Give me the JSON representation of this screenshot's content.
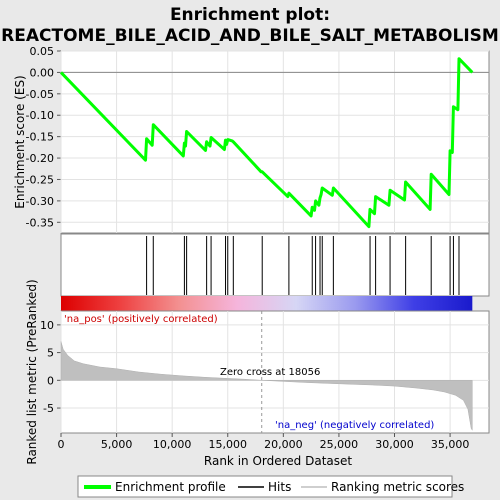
{
  "chart_data": {
    "type": "line",
    "title_line1": "Enrichment plot:",
    "title_line2": "REACTOME_BILE_ACID_AND_BILE_SALT_METABOLISM",
    "xlabel": "Rank in Ordered Dataset",
    "ylabel_top": "Enrichment score (ES)",
    "ylabel_bottom": "Ranked list metric (PreRanked)",
    "xlim": [
      0,
      38500
    ],
    "x_ticks": [
      0,
      5000,
      10000,
      15000,
      20000,
      25000,
      30000,
      35000
    ],
    "x_tick_labels": [
      "0",
      "5,000",
      "10,000",
      "15,000",
      "20,000",
      "25,000",
      "30,000",
      "35,000"
    ],
    "es_ylim": [
      -0.375,
      0.05
    ],
    "es_ticks": [
      0.05,
      0.0,
      -0.05,
      -0.1,
      -0.15,
      -0.2,
      -0.25,
      -0.3,
      -0.35
    ],
    "es_tick_labels": [
      "0.05",
      "0.00",
      "-0.05",
      "-0.10",
      "-0.15",
      "-0.20",
      "-0.25",
      "-0.30",
      "-0.35"
    ],
    "metric_ylim": [
      -9.5,
      12.5
    ],
    "metric_ticks": [
      10,
      5,
      0,
      -5
    ],
    "metric_tick_labels": [
      "10",
      "5",
      "0",
      "-5"
    ],
    "hits": [
      7700,
      8300,
      11100,
      11300,
      13100,
      13500,
      14800,
      15000,
      15500,
      18100,
      20500,
      22600,
      22900,
      23300,
      23500,
      24500,
      27800,
      28300,
      29600,
      31000,
      33300,
      35000,
      35300,
      35800
    ],
    "enrichment_profile": [
      [
        0,
        0.0
      ],
      [
        7600,
        -0.205
      ],
      [
        7700,
        -0.155
      ],
      [
        8200,
        -0.17
      ],
      [
        8300,
        -0.122
      ],
      [
        11000,
        -0.195
      ],
      [
        11100,
        -0.165
      ],
      [
        11200,
        -0.172
      ],
      [
        11300,
        -0.138
      ],
      [
        13000,
        -0.182
      ],
      [
        13100,
        -0.162
      ],
      [
        13400,
        -0.172
      ],
      [
        13500,
        -0.152
      ],
      [
        14700,
        -0.18
      ],
      [
        14800,
        -0.158
      ],
      [
        14900,
        -0.168
      ],
      [
        15000,
        -0.157
      ],
      [
        15400,
        -0.16
      ],
      [
        15500,
        -0.162
      ],
      [
        18000,
        -0.232
      ],
      [
        18100,
        -0.232
      ],
      [
        20400,
        -0.29
      ],
      [
        20500,
        -0.282
      ],
      [
        22500,
        -0.335
      ],
      [
        22600,
        -0.315
      ],
      [
        22800,
        -0.322
      ],
      [
        22900,
        -0.3
      ],
      [
        23200,
        -0.31
      ],
      [
        23300,
        -0.293
      ],
      [
        23400,
        -0.285
      ],
      [
        23500,
        -0.27
      ],
      [
        24400,
        -0.287
      ],
      [
        24500,
        -0.27
      ],
      [
        27700,
        -0.36
      ],
      [
        27800,
        -0.32
      ],
      [
        28200,
        -0.33
      ],
      [
        28300,
        -0.29
      ],
      [
        29500,
        -0.31
      ],
      [
        29600,
        -0.275
      ],
      [
        30900,
        -0.298
      ],
      [
        31000,
        -0.256
      ],
      [
        33200,
        -0.32
      ],
      [
        33300,
        -0.238
      ],
      [
        34900,
        -0.285
      ],
      [
        35000,
        -0.183
      ],
      [
        35200,
        -0.187
      ],
      [
        35300,
        -0.08
      ],
      [
        35700,
        -0.087
      ],
      [
        35800,
        0.032
      ],
      [
        37000,
        0.0
      ]
    ],
    "zero_cross_x": 18056,
    "ranked_metric_profile": [
      [
        0,
        7.0
      ],
      [
        200,
        5.6
      ],
      [
        600,
        4.5
      ],
      [
        1200,
        3.5
      ],
      [
        2000,
        3.0
      ],
      [
        3500,
        2.4
      ],
      [
        5000,
        2.1
      ],
      [
        7000,
        1.5
      ],
      [
        9000,
        1.1
      ],
      [
        11000,
        0.8
      ],
      [
        13000,
        0.55
      ],
      [
        15000,
        0.35
      ],
      [
        16500,
        0.2
      ],
      [
        18056,
        0.0
      ],
      [
        20000,
        -0.2
      ],
      [
        22000,
        -0.4
      ],
      [
        24000,
        -0.55
      ],
      [
        26000,
        -0.7
      ],
      [
        28000,
        -0.85
      ],
      [
        30000,
        -1.05
      ],
      [
        32000,
        -1.4
      ],
      [
        33500,
        -1.75
      ],
      [
        34500,
        -2.1
      ],
      [
        35500,
        -2.7
      ],
      [
        36200,
        -3.6
      ],
      [
        36600,
        -5.2
      ],
      [
        36900,
        -8.7
      ],
      [
        37000,
        -9.0
      ]
    ],
    "gradient_stops": [
      "#dd0000",
      "#ee4040",
      "#f39090",
      "#f5b5dc",
      "#d6d6f5",
      "#9b9bef",
      "#3f3fe6",
      "#1a1acc"
    ],
    "annotations": {
      "pos_label": "'na_pos' (positively correlated)",
      "neg_label": "'na_neg' (negatively correlated)",
      "zero_cross_label": "Zero cross at 18056"
    },
    "legend": {
      "placement": "bottom",
      "entries": [
        {
          "label": "Enrichment profile",
          "color": "#00ff00"
        },
        {
          "label": "Hits",
          "color": "#000000"
        },
        {
          "label": "Ranking metric scores",
          "color": "#bfbfbf"
        }
      ]
    },
    "colors": {
      "profile": "#00ff00",
      "pos_text": "#cc0000",
      "neg_text": "#0000cc",
      "metric_fill": "#bfbfbf",
      "background": "#e9e9e9"
    }
  }
}
